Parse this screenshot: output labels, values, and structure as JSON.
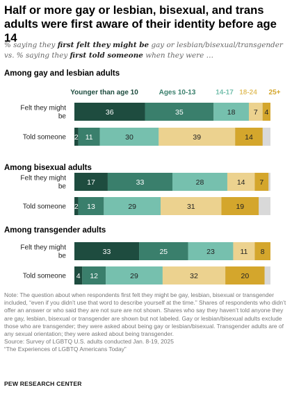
{
  "title": "Half or more gay or lesbian, bisexual, and trans adults were first aware of their identity before age 14",
  "subtitle": {
    "part1": "% saying they ",
    "bold1": "first felt they might be",
    "part2": " gay or lesbian/bisexual/transgender vs. % saying they ",
    "bold2": "first told someone",
    "part3": " when they were …"
  },
  "legend": [
    "Younger than age 10",
    "Ages 10-13",
    "14-17",
    "18-24",
    "25+"
  ],
  "colors": {
    "younger_than_10": "#1e4c3f",
    "ages_10_13": "#3a7f6c",
    "ages_14_17": "#76c0ae",
    "ages_18_24": "#ecd28f",
    "ages_25_plus": "#d4a62c",
    "not_labeled": "#d9d9d9",
    "legend_younger_than_10": "#1e4c3f",
    "legend_ages_10_13": "#3a7f6c",
    "legend_14_17": "#76c0ae",
    "legend_18_24": "#e3c36b",
    "legend_25_plus": "#d4a62c"
  },
  "chart_data": {
    "type": "bar",
    "orientation": "horizontal",
    "stacked": true,
    "unit": "%",
    "series_names": [
      "Younger than age 10",
      "Ages 10-13",
      "14-17",
      "18-24",
      "25+"
    ],
    "groups": [
      {
        "heading": "Among gay and lesbian adults",
        "rows": [
          {
            "label": "Felt they might be",
            "values": [
              36,
              35,
              18,
              7,
              4
            ]
          },
          {
            "label": "Told someone",
            "values": [
              2,
              11,
              30,
              39,
              14
            ]
          }
        ]
      },
      {
        "heading": "Among bisexual adults",
        "rows": [
          {
            "label": "Felt they might be",
            "values": [
              17,
              33,
              28,
              14,
              7
            ]
          },
          {
            "label": "Told someone",
            "values": [
              2,
              13,
              29,
              31,
              19
            ]
          }
        ]
      },
      {
        "heading": "Among transgender adults",
        "rows": [
          {
            "label": "Felt they might be",
            "values": [
              33,
              25,
              23,
              11,
              8
            ]
          },
          {
            "label": "Told someone",
            "values": [
              4,
              12,
              29,
              32,
              20
            ]
          }
        ]
      }
    ]
  },
  "note": "Note: The question about when respondents first felt they might be gay, lesbian, bisexual or transgender included, “even if you didn’t use that word to describe yourself at the time.” Shares of respondents who didn’t offer an answer or who said they are not sure are not shown. Shares who say they haven’t told anyone they are gay, lesbian, bisexual or transgender are shown but not labeled. Gay or lesbian/bisexual adults exclude those who are transgender; they were asked about being gay or lesbian/bisexual. Transgender adults are of any sexual orientation; they were asked about being transgender.",
  "source": "Source: Survey of LGBTQ U.S. adults conducted Jan. 8-19, 2025",
  "report": "“The Experiences of LGBTQ Americans Today”",
  "org": "PEW RESEARCH CENTER"
}
